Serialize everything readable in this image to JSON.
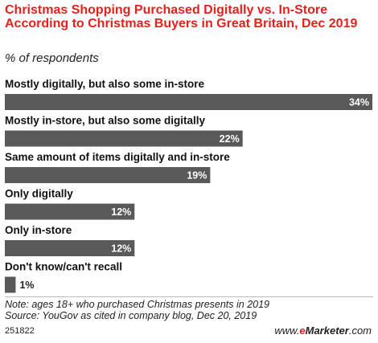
{
  "chart_data": {
    "type": "bar",
    "orientation": "horizontal",
    "title": "Christmas Shopping Purchased Digitally vs. In-Store According to Christmas Buyers in Great Britain, Dec 2019",
    "subtitle": "% of respondents",
    "categories": [
      "Mostly digitally, but also some in-store",
      "Mostly in-store, but also some digitally",
      "Same amount of items digitally and in-store",
      "Only digitally",
      "Only in-store",
      "Don't know/can't recall"
    ],
    "values": [
      34,
      22,
      19,
      12,
      12,
      1
    ],
    "value_labels": [
      "34%",
      "22%",
      "19%",
      "12%",
      "12%",
      "1%"
    ],
    "unit": "%",
    "xlim": [
      0,
      34
    ],
    "bar_color": "#595959",
    "grid": false,
    "legend": "none"
  },
  "footer": {
    "note": "Note: ages 18+ who purchased Christmas presents in 2019",
    "source": "Source: YouGov as cited in company blog, Dec 20, 2019",
    "chart_id": "251822",
    "brand_e": "e",
    "brand_rest": "Marketer",
    "brand_suffix": ".com"
  },
  "colors": {
    "title": "#e4221d",
    "bar": "#595959",
    "inside_label": "#ffffff",
    "outside_label": "#222222"
  }
}
